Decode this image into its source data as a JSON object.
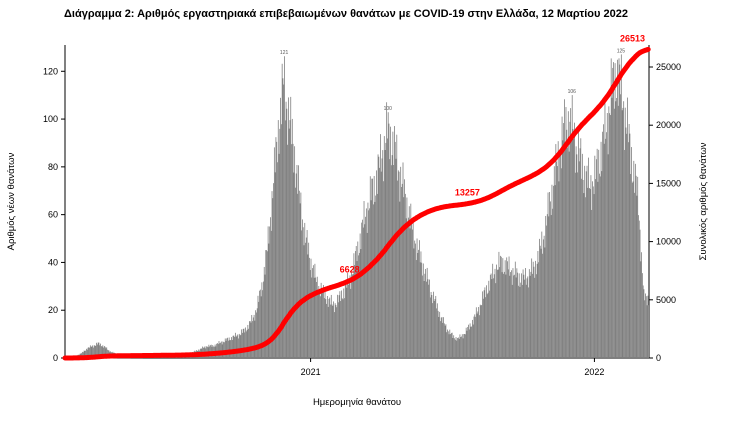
{
  "title": "Διάγραμμα 2: Αριθμός εργαστηριακά επιβεβαιωμένων θανάτων με COVID-19 στην Ελλάδα, 12 Μαρτίου 2022",
  "chart_data": {
    "type": "bar",
    "description": "Daily laboratory-confirmed COVID-19 deaths in Greece (grey bars, left axis) with cumulative total deaths (red line, right axis), up to 12 March 2022",
    "x_start_date": "2020-02-24",
    "weekly_avg_new_deaths": [
      0,
      0.5,
      1,
      2,
      4,
      5,
      6,
      5,
      3,
      2,
      1,
      1,
      1,
      0.5,
      0.5,
      0.5,
      1,
      1,
      1,
      1,
      1,
      1,
      2,
      2,
      3,
      4,
      5,
      5,
      6,
      7,
      8,
      9,
      10,
      12,
      15,
      20,
      30,
      45,
      70,
      95,
      115,
      100,
      85,
      65,
      50,
      40,
      32,
      28,
      25,
      22,
      24,
      28,
      32,
      40,
      50,
      60,
      68,
      75,
      85,
      95,
      90,
      80,
      70,
      60,
      50,
      42,
      35,
      28,
      22,
      16,
      12,
      9,
      8,
      10,
      13,
      17,
      22,
      28,
      33,
      38,
      40,
      38,
      36,
      34,
      33,
      35,
      38,
      45,
      55,
      68,
      80,
      92,
      100,
      95,
      85,
      78,
      72,
      75,
      85,
      95,
      110,
      120,
      110,
      95,
      80,
      65,
      25
    ],
    "cumulative_total": 26513,
    "milestones": [
      6628,
      13257,
      26513
    ],
    "peak_labels": [
      {
        "week": 40,
        "text": "121"
      },
      {
        "week": 59,
        "text": "100"
      },
      {
        "week": 92,
        "text": "106"
      },
      {
        "week": 101,
        "text": "125"
      }
    ],
    "left_axis": {
      "label": "Αριθμός νέων θανάτων",
      "ticks": [
        0,
        20,
        40,
        60,
        80,
        100,
        120
      ],
      "max": 131
    },
    "right_axis": {
      "label": "Συνολικός αριθμός θανάτων",
      "ticks": [
        0,
        5000,
        10000,
        15000,
        20000,
        25000
      ],
      "max": 25000
    },
    "x_axis": {
      "label": "Ημερομηνία θανάτου",
      "ticks": [
        {
          "label": "2021",
          "week": 45
        },
        {
          "label": "2022",
          "week": 97
        }
      ]
    },
    "bar_color": "#7f7f7f",
    "line_color": "#ff0000"
  }
}
